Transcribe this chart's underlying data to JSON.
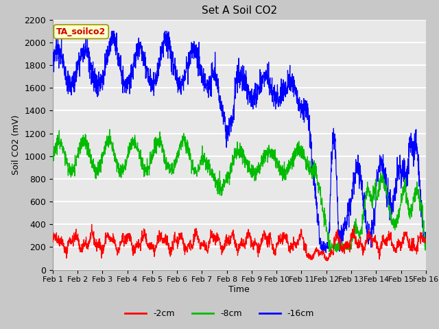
{
  "title": "Set A Soil CO2",
  "ylabel": "Soil CO2 (mV)",
  "xlabel": "Time",
  "annotation": "TA_soilco2",
  "legend_labels": [
    "-2cm",
    "-8cm",
    "-16cm"
  ],
  "legend_colors": [
    "#ff0000",
    "#00bb00",
    "#0000ff"
  ],
  "xlim": [
    0,
    15
  ],
  "ylim": [
    0,
    2200
  ],
  "yticks": [
    0,
    200,
    400,
    600,
    800,
    1000,
    1200,
    1400,
    1600,
    1800,
    2000,
    2200
  ],
  "xtick_labels": [
    "Feb 1",
    "Feb 2",
    "Feb 3",
    "Feb 4",
    "Feb 5",
    "Feb 6",
    "Feb 7",
    "Feb 8",
    "Feb 9",
    "Feb 10",
    "Feb 11",
    "Feb 12",
    "Feb 13",
    "Feb 14",
    "Feb 15",
    "Feb 16"
  ],
  "fig_bg_color": "#c8c8c8",
  "plot_bg_color": "#e8e8e8",
  "grid_color": "#ffffff",
  "figsize": [
    6.4,
    4.8
  ],
  "dpi": 100
}
